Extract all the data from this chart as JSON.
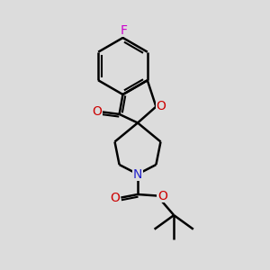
{
  "bg_color": "#dcdcdc",
  "black": "#000000",
  "red": "#cc0000",
  "blue": "#2222cc",
  "magenta": "#cc00cc",
  "lw": 1.8,
  "lw_double": 1.5,
  "fs": 10,
  "xlim": [
    0,
    10
  ],
  "ylim": [
    0,
    10
  ]
}
